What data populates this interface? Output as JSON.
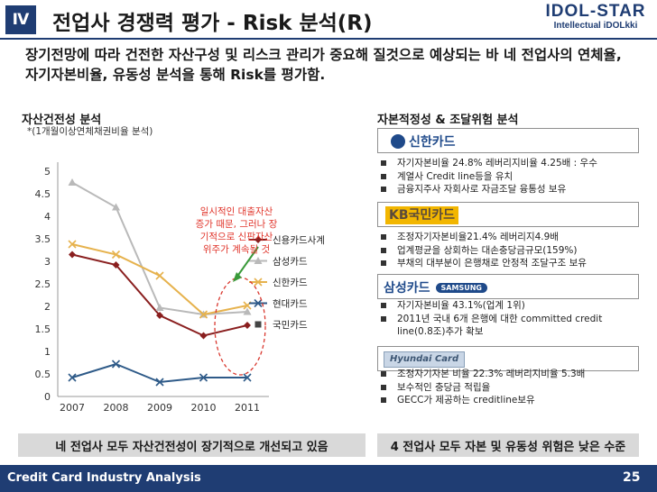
{
  "header": {
    "section_number": "Ⅳ",
    "title": "전업사 경쟁력 평가 - Risk 분석(R)",
    "logo_line1": "IDOL-STAR",
    "logo_line2": "Intellectual iDOLkki"
  },
  "intro": "장기전망에 따라 건전한 자산구성 및 리스크 관리가 중요해 질것으로 예상되는 바 네 전업사의 연체율, 자기자본비율, 유동성 분석을 통해 Risk를 평가함.",
  "left": {
    "title": "자산건전성 분석",
    "note": "*(1개월이상연체채권비율 분석)",
    "annotation": [
      "일시적인 대출자산",
      "증가 때문, 그러나 장",
      "기적으로 신판자산",
      "위주가 계속될 것"
    ]
  },
  "chart_data": {
    "type": "line",
    "categories": [
      "2007",
      "2008",
      "2009",
      "2010",
      "2011"
    ],
    "ylim": [
      0,
      5
    ],
    "yticks": [
      "0",
      "0.5",
      "1",
      "1.5",
      "2",
      "2.5",
      "3",
      "3.5",
      "4",
      "4.5",
      "5"
    ],
    "series": [
      {
        "name": "신용카드사계",
        "color": "#8a1f1f",
        "marker": "diamond",
        "values": [
          3.15,
          2.92,
          1.8,
          1.35,
          1.58
        ]
      },
      {
        "name": "삼성카드",
        "color": "#b9b9b9",
        "marker": "triangle",
        "values": [
          4.75,
          4.2,
          1.97,
          1.82,
          1.88
        ]
      },
      {
        "name": "신한카드",
        "color": "#e6b24d",
        "marker": "x",
        "values": [
          3.38,
          3.15,
          2.68,
          1.82,
          2.02
        ]
      },
      {
        "name": "현대카드",
        "color": "#2e5a88",
        "marker": "x",
        "values": [
          0.42,
          0.72,
          0.32,
          0.42,
          0.42
        ]
      },
      {
        "name": "국민카드",
        "color": "#444444",
        "marker": "square",
        "values": [
          null,
          null,
          null,
          null,
          null
        ]
      }
    ]
  },
  "right": {
    "title": "자본적정성 & 조달위험 분석",
    "cards": [
      {
        "logo": "신한카드",
        "items": [
          "자기자본비율 24.8% 레버리지비율 4.25배 : 우수",
          "계열사 Credit line등을 유치",
          "금융지주사 자회사로 자금조달 융통성 보유"
        ]
      },
      {
        "logo": "KB국민카드",
        "items": [
          "조정자기자본비율21.4% 레버리지4.9배",
          "업계평균을 상회하는 대손충당금규모(159%)",
          "부채의 대부분이 은행채로 안정적 조달구조 보유"
        ]
      },
      {
        "logo": "삼성카드",
        "logo_badge": "SAMSUNG",
        "items": [
          "자기자본비율 43.1%(업계 1위)",
          "2011년 국내 6개 은행에 대한 committed credit",
          "line(0.8조)추가 확보"
        ]
      },
      {
        "logo": "Hyundai Card",
        "items": [
          "조정자기자본 비율 22.3% 레버리지비율 5.3배",
          "보수적인 충당금 적립율",
          "GECC가 제공하는 creditline보유"
        ]
      }
    ]
  },
  "conclusions": {
    "left": "네 전업사 모두 자산건전성이 장기적으로 개선되고 있음",
    "right": "4 전업사 모두 자본 및 유동성 위험은 낮은 수준"
  },
  "footer": {
    "text": "Credit Card Industry Analysis",
    "page": "25"
  }
}
